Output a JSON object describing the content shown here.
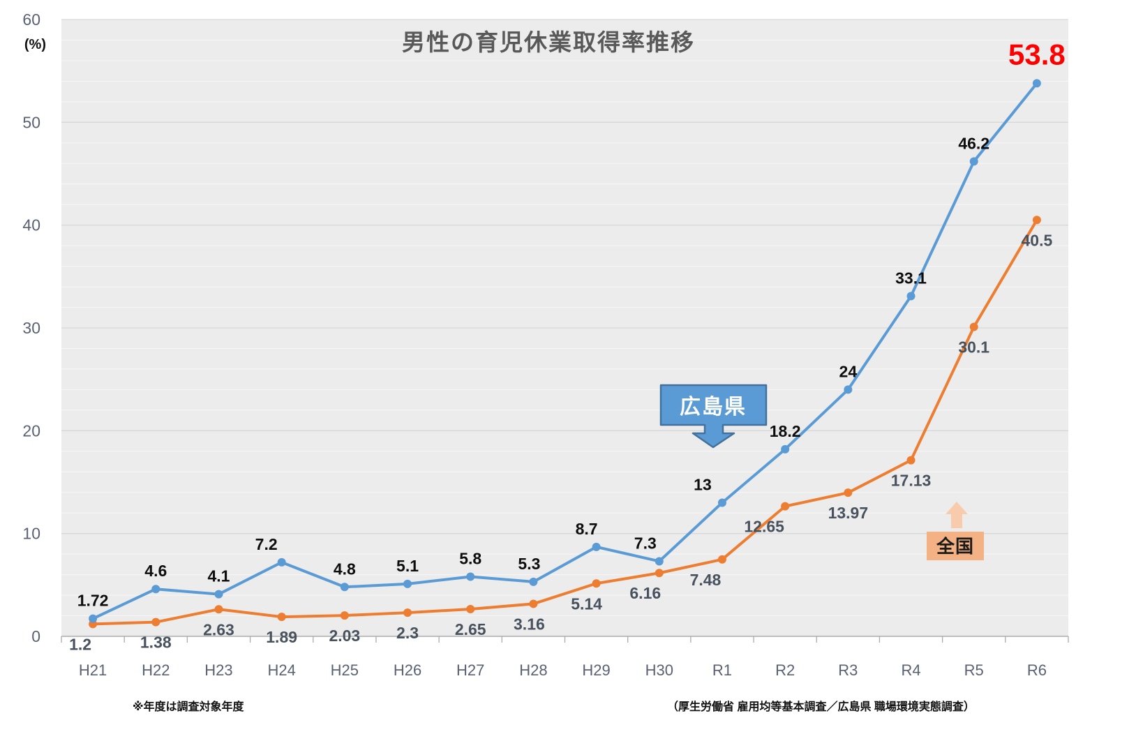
{
  "title": "男性の育児休業取得率推移",
  "y_axis": {
    "unit": "(%)"
  },
  "footnotes": {
    "left": "※年度は調査対象年度",
    "right": "（厚生労働省 雇用均等基本調査／広島県 職場環境実態調査）"
  },
  "callouts": {
    "hiroshima": {
      "label": "広島県",
      "fill": "#5B9BD5",
      "border": "#41719C",
      "text_color": "#FFFFFF"
    },
    "national": {
      "label": "全国",
      "fill": "#F4B183",
      "arrow_fill": "#F8CBAD",
      "text_color": "#1A1A1A"
    }
  },
  "chart_data": {
    "type": "line",
    "title": "男性の育児休業取得率推移",
    "xlabel": "",
    "ylabel": "(%)",
    "ylim": [
      0,
      60
    ],
    "y_major_step": 10,
    "y_minor_step": 2,
    "grid": true,
    "legend_position": "on-chart-callouts",
    "plot_background": "#ECECEC",
    "major_grid_color": "#D8D8D8",
    "minor_grid_color": "#F7F7F7",
    "axis_color": "#ABABAB",
    "tick_label_color": "#596273",
    "categories": [
      "H21",
      "H22",
      "H23",
      "H24",
      "H25",
      "H26",
      "H27",
      "H28",
      "H29",
      "H30",
      "R1",
      "R2",
      "R3",
      "R4",
      "R5",
      "R6"
    ],
    "series": [
      {
        "name": "広島県",
        "color": "#5B9BD5",
        "values": [
          1.72,
          4.6,
          4.1,
          7.2,
          4.8,
          5.1,
          5.8,
          5.3,
          8.7,
          7.3,
          13,
          18.2,
          24,
          33.1,
          46.2,
          53.8
        ],
        "labels": [
          "1.72",
          "4.6",
          "4.1",
          "7.2",
          "4.8",
          "5.1",
          "5.8",
          "5.3",
          "8.7",
          "7.3",
          "13",
          "18.2",
          "24",
          "33.1",
          "46.2",
          "53.8"
        ],
        "label_side": "above",
        "label_color": "#0D0D0D",
        "final_label": {
          "color": "#FF0000",
          "size": 42
        }
      },
      {
        "name": "全国",
        "color": "#ED7D31",
        "values": [
          1.2,
          1.38,
          2.63,
          1.89,
          2.03,
          2.3,
          2.65,
          3.16,
          5.14,
          6.16,
          7.48,
          12.65,
          13.97,
          17.13,
          30.1,
          40.5
        ],
        "labels": [
          "1.2",
          "1.38",
          "2.63",
          "1.89",
          "2.03",
          "2.3",
          "2.65",
          "3.16",
          "5.14",
          "6.16",
          "7.48",
          "12.65",
          "13.97",
          "17.13",
          "30.1",
          "40.5"
        ],
        "label_side": "below",
        "label_color": "#47525E"
      }
    ]
  }
}
